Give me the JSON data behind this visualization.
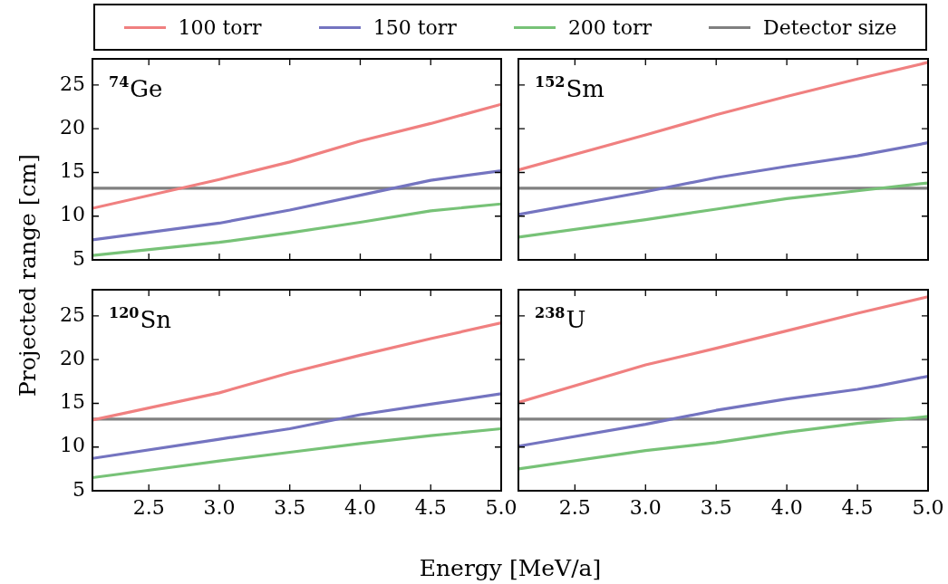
{
  "chart_data": [
    {
      "type": "line",
      "title": "$^{74}$Ge",
      "ylabel": "Projected range [cm]",
      "legend": "top",
      "tick_labels": "y",
      "xlim": [
        2.1,
        5.0
      ],
      "xticks": [
        2.5,
        3,
        3.5,
        4,
        4.5,
        5
      ],
      "ylim": [
        5,
        28
      ],
      "yticks": [
        5,
        10,
        15,
        20,
        25
      ],
      "x": [
        2.1,
        3.0,
        3.5,
        4.0,
        4.5,
        5.0
      ],
      "series": [
        {
          "name": "100 torr",
          "color": "#f08080",
          "values": [
            10.9,
            14.2,
            16.2,
            18.6,
            20.6,
            22.8
          ]
        },
        {
          "name": "150 torr",
          "color": "#7474c0",
          "values": [
            7.3,
            9.2,
            10.7,
            12.4,
            14.1,
            15.2
          ]
        },
        {
          "name": "200 torr",
          "color": "#77c277",
          "values": [
            5.5,
            7.0,
            8.1,
            9.3,
            10.6,
            11.4
          ]
        }
      ],
      "ref_lines": [
        {
          "axis": "y",
          "value": 13.2,
          "label": "Detector size",
          "color": "#808080"
        }
      ]
    },
    {
      "type": "line",
      "title": "$^{152}$Sm",
      "tick_labels": false,
      "xlim": [
        2.1,
        5.0
      ],
      "xticks": [
        2.5,
        3,
        3.5,
        4,
        4.5,
        5
      ],
      "ylim": [
        5,
        28
      ],
      "yticks": [
        5,
        10,
        15,
        20,
        25
      ],
      "x": [
        2.1,
        3.0,
        3.5,
        4.0,
        4.5,
        5.0
      ],
      "series": [
        {
          "color": "#f08080",
          "values": [
            15.3,
            19.3,
            21.6,
            23.7,
            25.7,
            27.6
          ]
        },
        {
          "color": "#7474c0",
          "values": [
            10.2,
            12.8,
            14.4,
            15.7,
            16.9,
            18.4
          ]
        },
        {
          "color": "#77c277",
          "values": [
            7.6,
            9.6,
            10.8,
            12.0,
            12.9,
            13.8
          ]
        }
      ],
      "ref_lines": [
        {
          "axis": "y",
          "value": 13.2,
          "color": "#808080"
        }
      ]
    },
    {
      "type": "line",
      "title": "$^{120}$Sn",
      "xlabel": "Energy [MeV/a]",
      "xlim": [
        2.1,
        5.0
      ],
      "xticks": [
        2.5,
        {
          "value": 3,
          "label": "3.0"
        },
        3.5,
        {
          "value": 4,
          "label": "4.0"
        },
        4.5,
        {
          "value": 5,
          "label": "5.0"
        }
      ],
      "ylim": [
        5,
        28
      ],
      "yticks": [
        5,
        10,
        15,
        20,
        25
      ],
      "x": [
        2.1,
        3.0,
        3.5,
        4.0,
        4.5,
        5.0
      ],
      "series": [
        {
          "color": "#f08080",
          "values": [
            13.1,
            16.2,
            18.5,
            20.5,
            22.4,
            24.2
          ]
        },
        {
          "color": "#7474c0",
          "values": [
            8.7,
            10.9,
            12.1,
            13.7,
            14.9,
            16.1
          ]
        },
        {
          "color": "#77c277",
          "values": [
            6.5,
            8.4,
            9.4,
            10.4,
            11.3,
            12.1
          ]
        }
      ],
      "ref_lines": [
        {
          "axis": "y",
          "value": 13.2,
          "color": "#808080"
        }
      ]
    },
    {
      "type": "line",
      "title": "$^{238}$U",
      "tick_labels": "x",
      "xlim": [
        2.1,
        5.0
      ],
      "xticks": [
        2.5,
        {
          "value": 3,
          "label": "3.0"
        },
        3.5,
        {
          "value": 4,
          "label": "4.0"
        },
        4.5,
        {
          "value": 5,
          "label": "5.0"
        }
      ],
      "ylim": [
        5,
        28
      ],
      "yticks": [
        5,
        10,
        15,
        20,
        25
      ],
      "x": [
        2.1,
        3.0,
        3.5,
        4.0,
        4.5,
        5.0
      ],
      "series": [
        {
          "color": "#f08080",
          "values": [
            15.1,
            19.4,
            21.3,
            23.3,
            25.3,
            27.2
          ]
        },
        {
          "color": "#7474c0",
          "x": [
            2.1,
            3.0,
            3.5,
            4.0,
            4.5,
            4.65,
            5.0
          ],
          "values": [
            10.1,
            12.6,
            14.2,
            15.5,
            16.6,
            17.0,
            18.1
          ]
        },
        {
          "color": "#77c277",
          "values": [
            7.5,
            9.6,
            10.5,
            11.7,
            12.7,
            13.5
          ]
        }
      ],
      "ref_lines": [
        {
          "axis": "y",
          "value": 13.2,
          "color": "#808080"
        }
      ]
    }
  ]
}
